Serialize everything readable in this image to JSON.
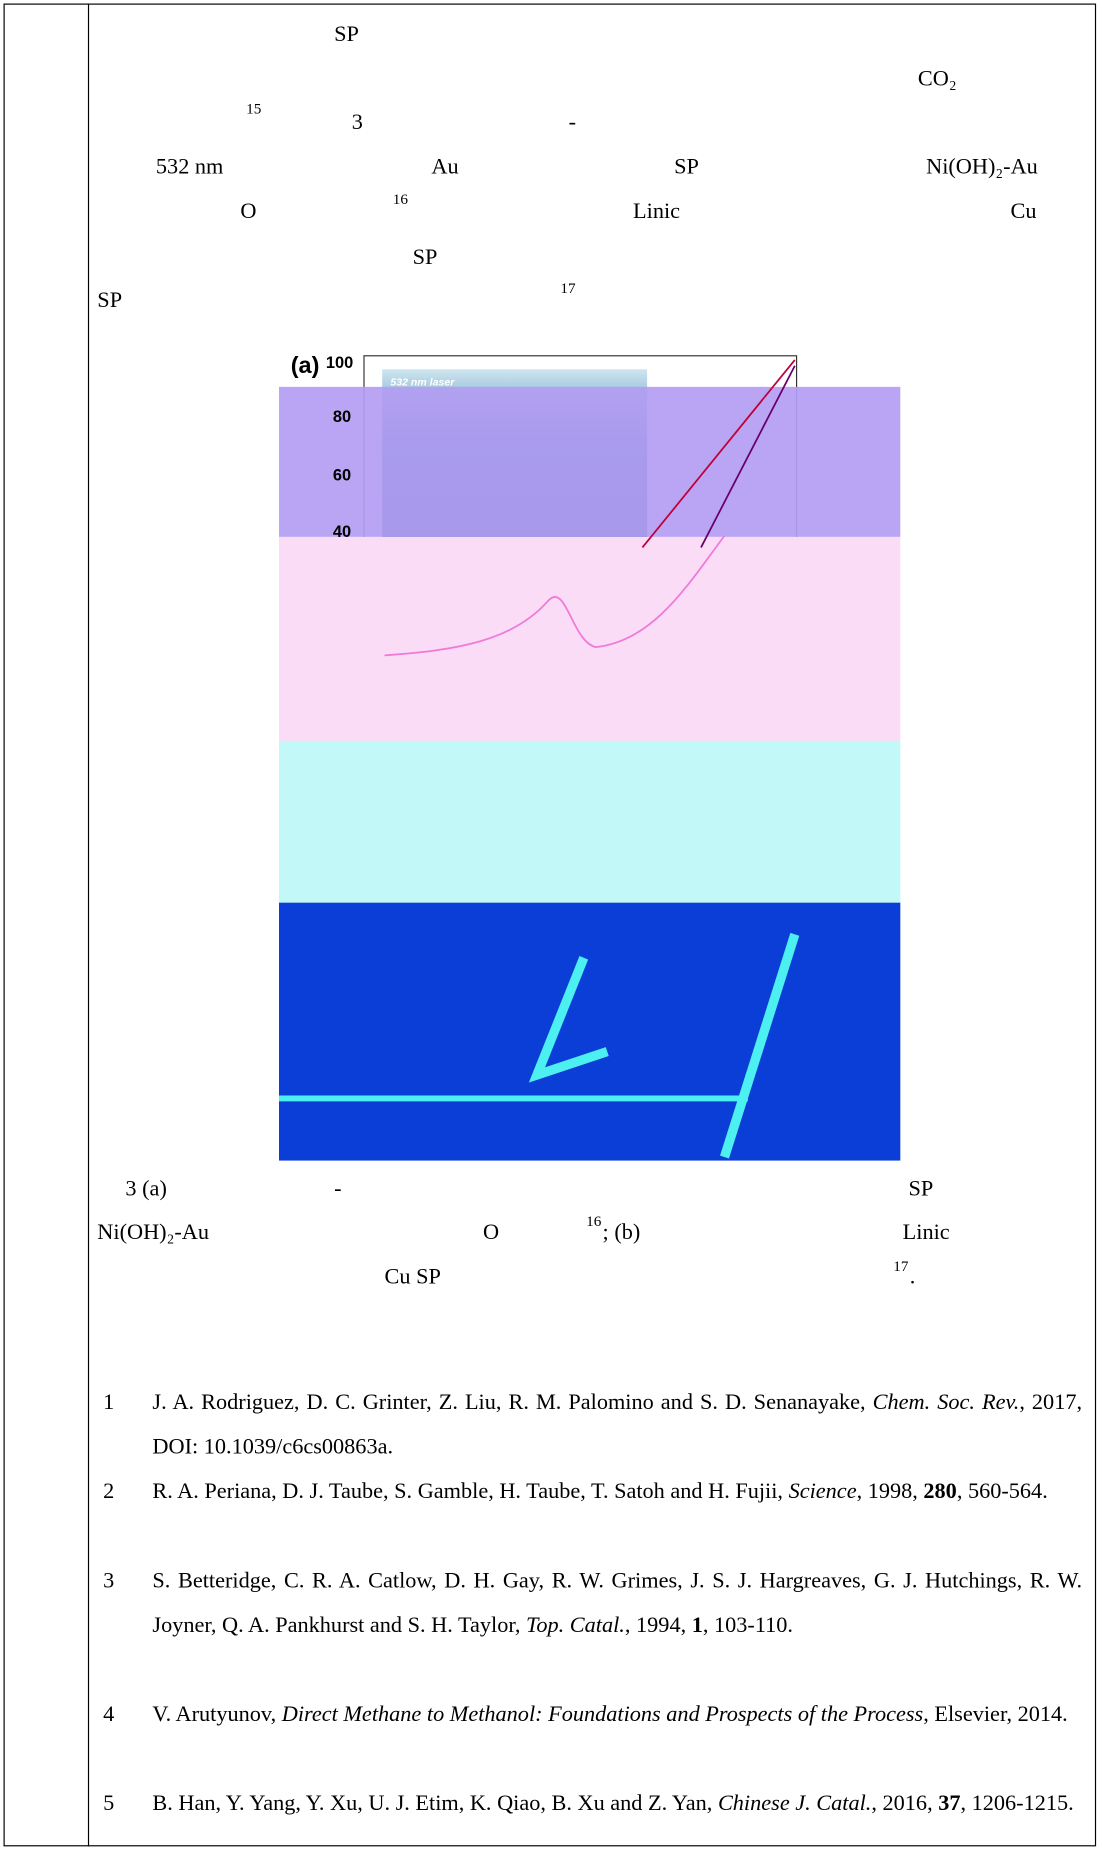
{
  "body_fragments": [
    "SP",
    "CO₂",
    "15",
    "3",
    "-",
    "532 nm",
    "Au",
    "SP",
    "Ni(OH)₂-Au",
    "O",
    "16",
    "Linic",
    "Cu",
    "SP",
    "SP",
    "17"
  ],
  "figure": {
    "labels": [
      "(a)",
      "100",
      "80",
      "60",
      "40",
      "532 nm laser"
    ]
  },
  "caption_fragments": [
    "3 (a)",
    "-",
    "SP",
    "Ni(OH)₂-Au",
    "O",
    "16",
    "; (b)",
    "Linic",
    "Cu SP",
    "17",
    "."
  ],
  "references": [
    {
      "number": "1",
      "parts": [
        {
          "text": "J. A. Rodriguez, D. C. Grinter, Z. Liu, R. M. Palomino and S. D. Senanayake, "
        },
        {
          "text": "Chem. Soc. Rev.",
          "style": "i"
        },
        {
          "text": ", 2017, DOI: 10.1039/c6cs00863a."
        }
      ]
    },
    {
      "number": "2",
      "parts": [
        {
          "text": "R. A. Periana, D. J. Taube, S. Gamble, H. Taube, T. Satoh and H. Fujii, "
        },
        {
          "text": "Science",
          "style": "i"
        },
        {
          "text": ", 1998, "
        },
        {
          "text": "280",
          "style": "b"
        },
        {
          "text": ", 560-564."
        }
      ]
    },
    {
      "number": "3",
      "parts": [
        {
          "text": "S. Betteridge, C. R. A. Catlow, D. H. Gay, R. W. Grimes, J. S. J. Hargreaves, G. J. Hutchings, R. W. Joyner, Q. A. Pankhurst and S. H. Taylor, "
        },
        {
          "text": "Top. Catal.",
          "style": "i"
        },
        {
          "text": ", 1994, "
        },
        {
          "text": "1",
          "style": "b"
        },
        {
          "text": ", 103-110."
        }
      ]
    },
    {
      "number": "4",
      "parts": [
        {
          "text": "V. Arutyunov, "
        },
        {
          "text": "Direct Methane to Methanol: Foundations and Prospects of the Process",
          "style": "i"
        },
        {
          "text": ", Elsevier, 2014."
        }
      ]
    },
    {
      "number": "5",
      "parts": [
        {
          "text": "B. Han, Y. Yang, Y. Xu, U. J. Etim, K. Qiao, B. Xu and Z. Yan, "
        },
        {
          "text": "Chinese J. Catal.",
          "style": "i"
        },
        {
          "text": ", 2016, "
        },
        {
          "text": "37",
          "style": "b"
        },
        {
          "text": ", 1206-1215."
        }
      ]
    }
  ]
}
